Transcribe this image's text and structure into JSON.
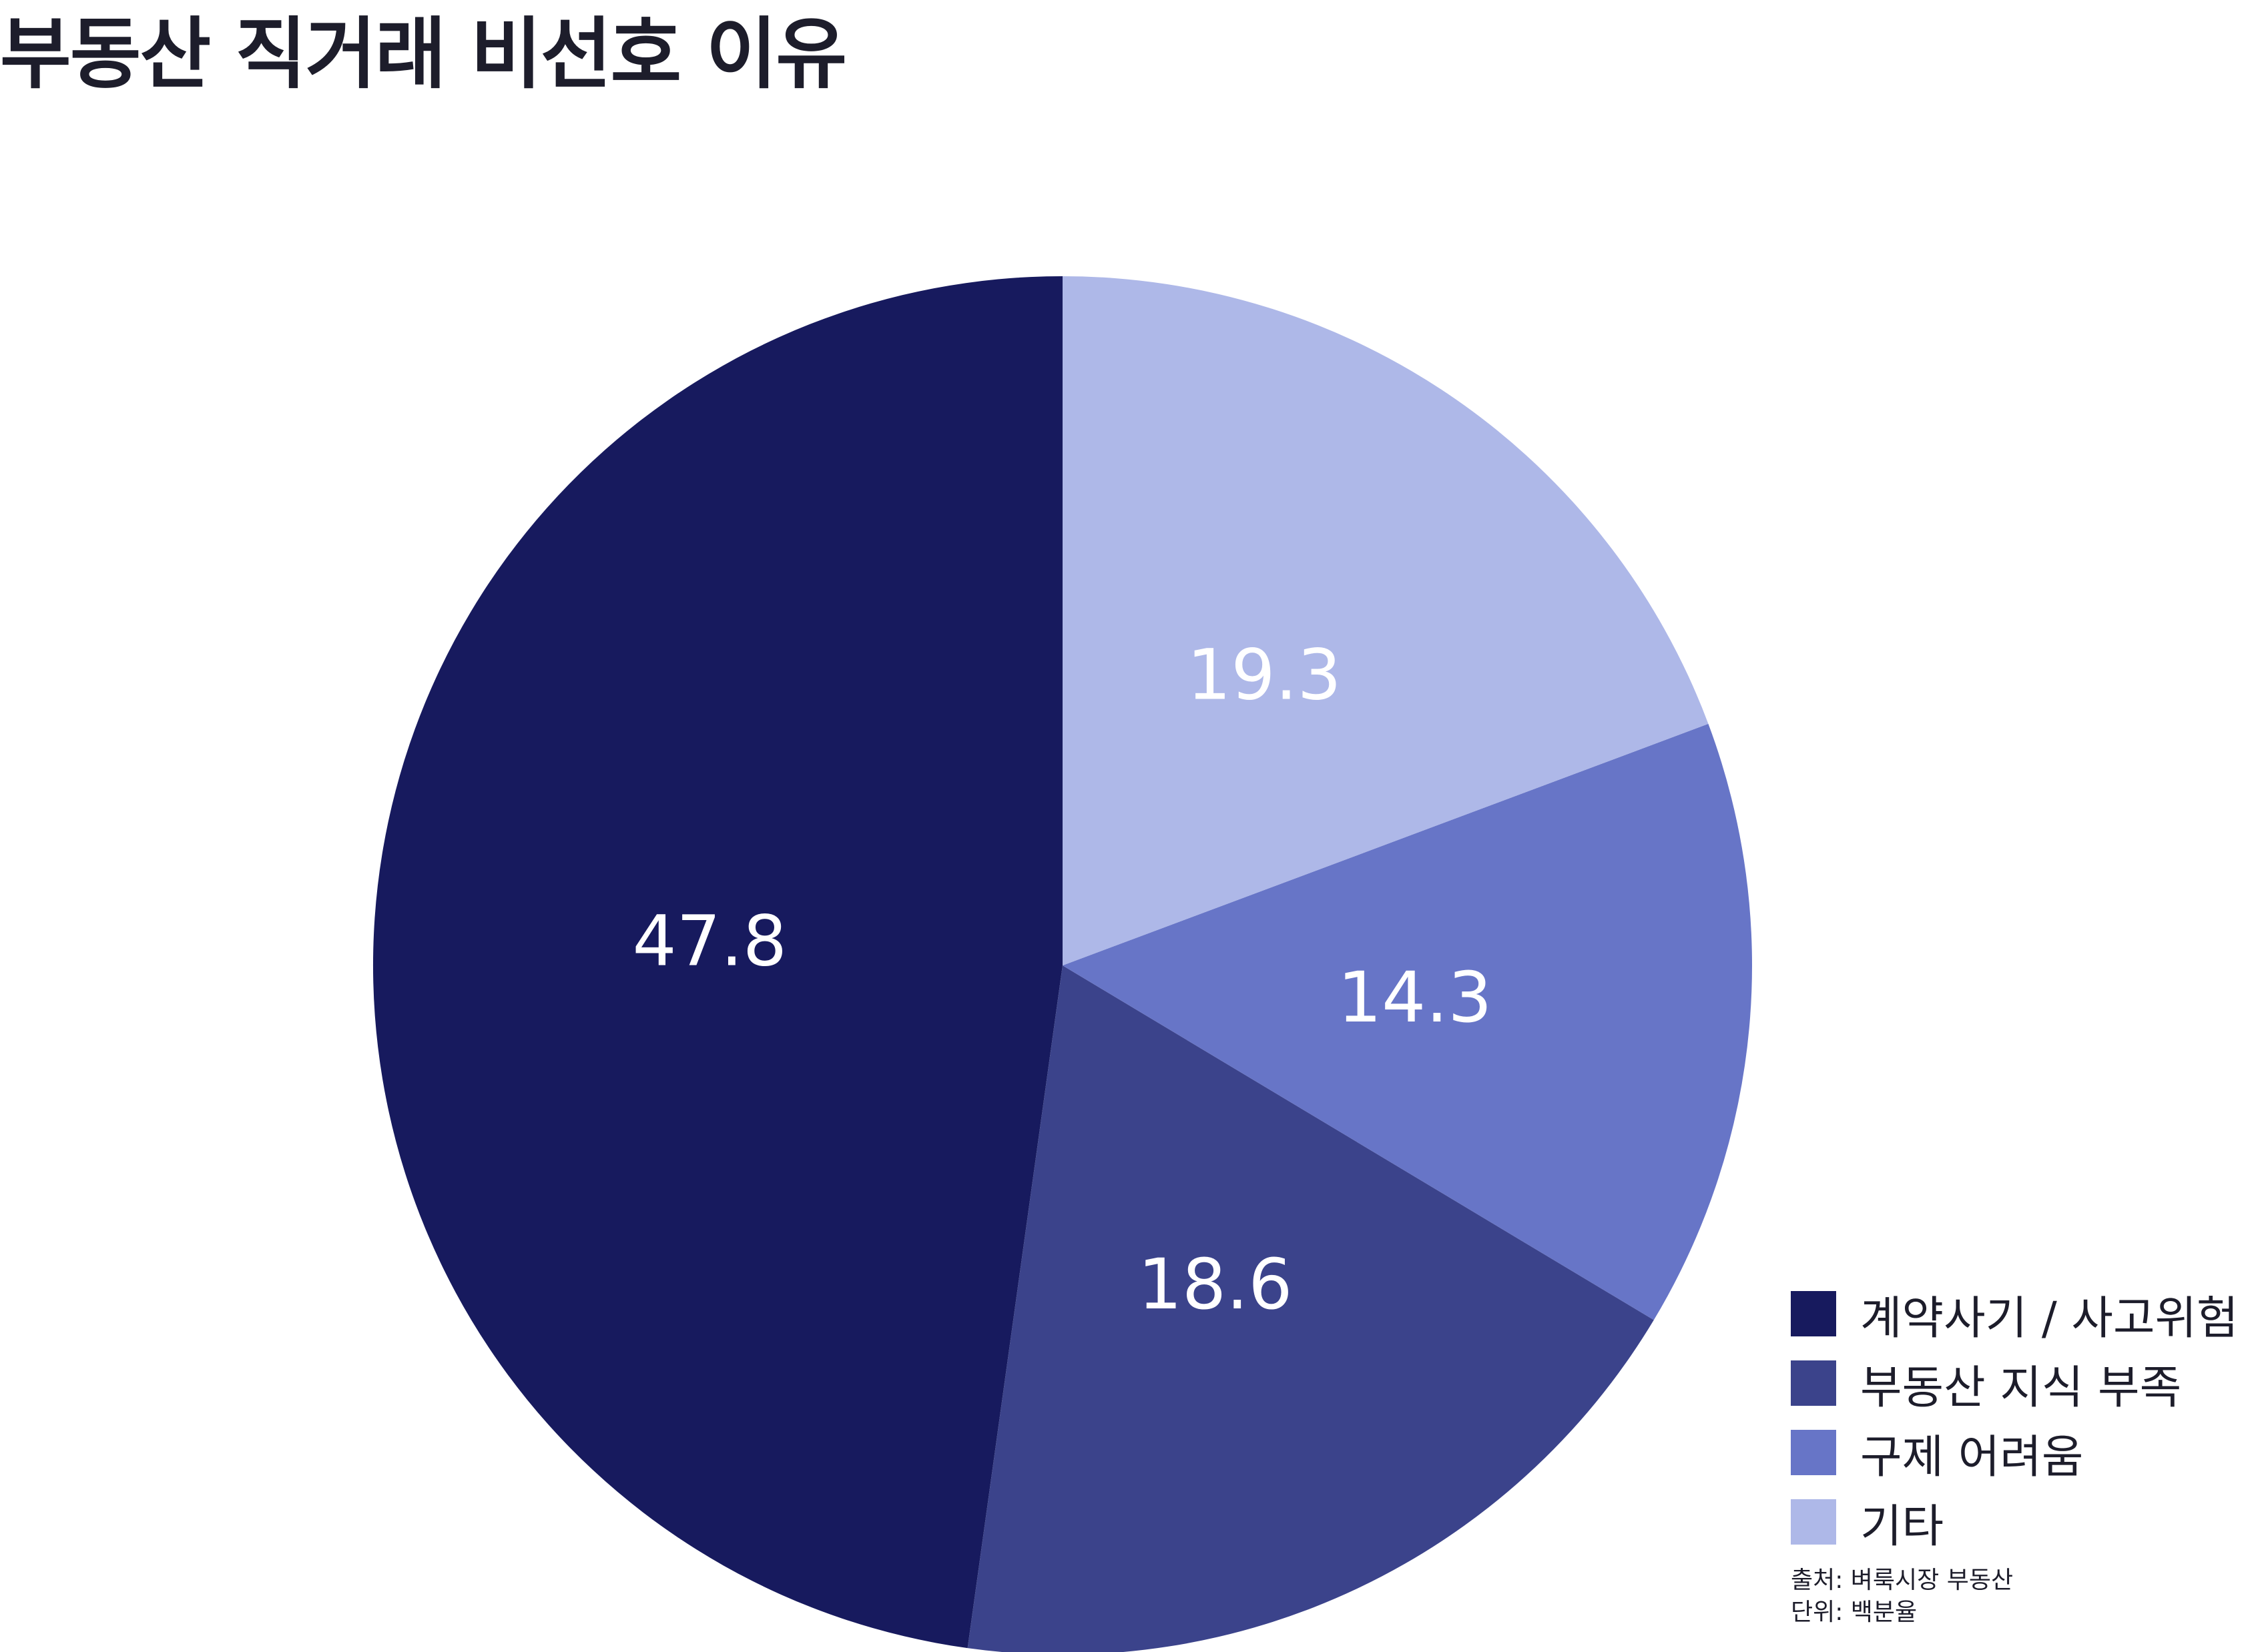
{
  "chart_data": {
    "type": "pie",
    "title": "부동산 직거래 비선호 이유",
    "categories": [
      "계약사기 / 사고위험",
      "부동산 지식 부족",
      "구제 어려움",
      "기타"
    ],
    "values": [
      47.8,
      18.6,
      14.3,
      19.3
    ],
    "value_labels": [
      "47.8",
      "18.6",
      "14.3",
      "19.3"
    ],
    "colors": [
      "#171a5e",
      "#3b438b",
      "#6775c7",
      "#aeb8e8"
    ],
    "start_angle_deg": 0,
    "direction": "counterclockwise",
    "legend_position": "bottom-right"
  },
  "legend": {
    "items": [
      {
        "label": "계약사기 / 사고위험",
        "color": "#171a5e"
      },
      {
        "label": "부동산 지식 부족",
        "color": "#3b438b"
      },
      {
        "label": "구제 어려움",
        "color": "#6775c7"
      },
      {
        "label": "기타",
        "color": "#aeb8e8"
      }
    ]
  },
  "footnote": {
    "source": "출처: 벼룩시장 부동산",
    "unit": "단위: 백분율"
  }
}
